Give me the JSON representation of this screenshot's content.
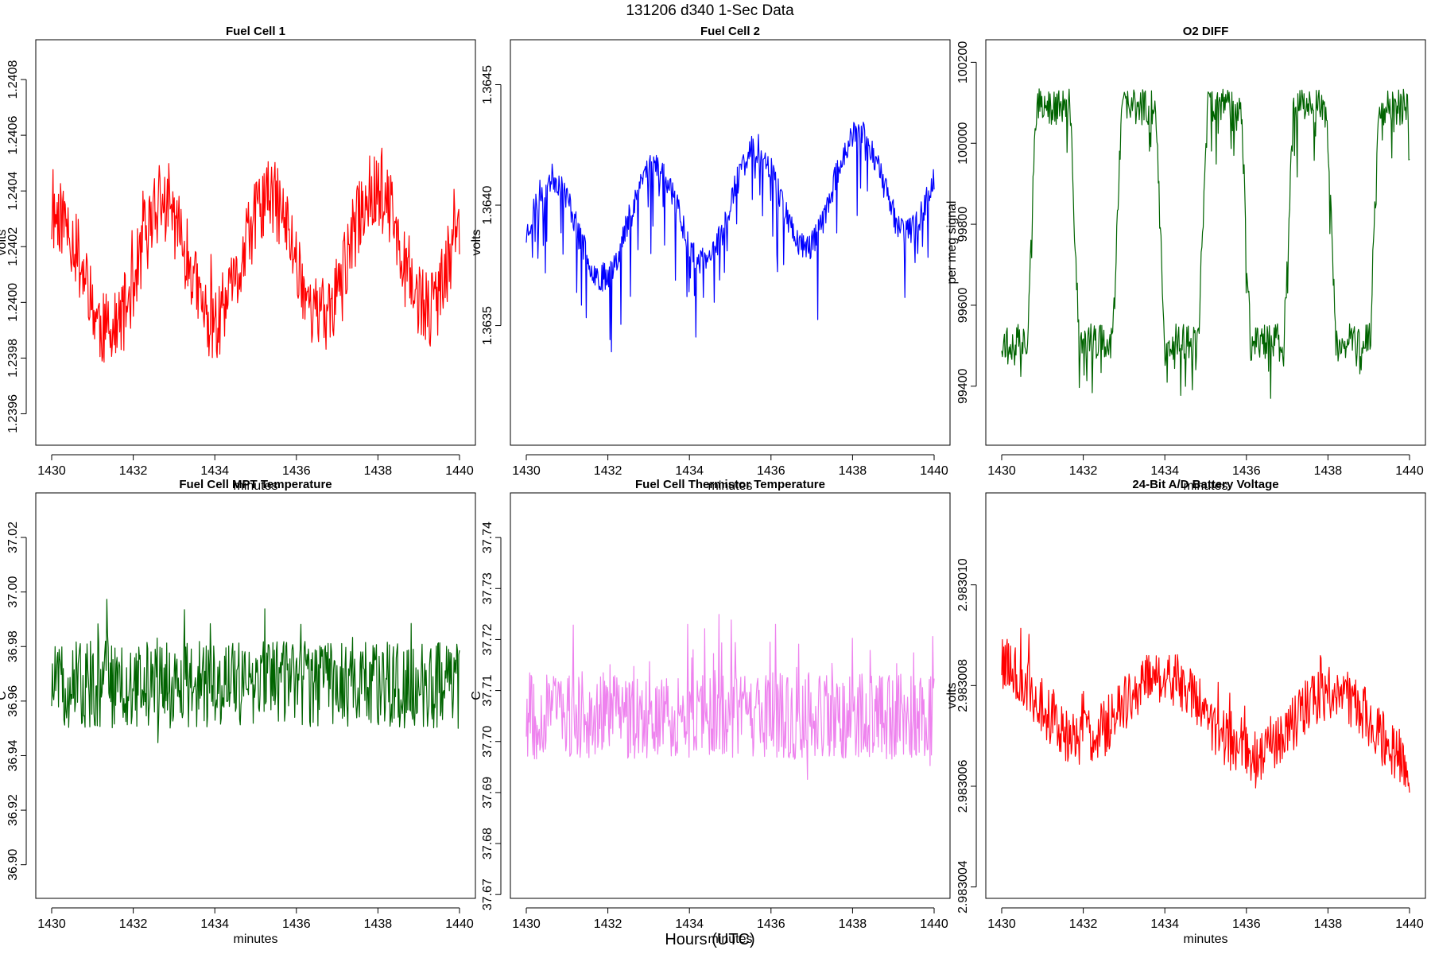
{
  "figure": {
    "title": "131206   d340   1-Sec Data",
    "xlabel": "Hours (UTC)"
  },
  "chart_data": [
    {
      "type": "line",
      "title": "Fuel Cell 1",
      "xlabel": "minutes",
      "ylabel": "volts",
      "color": "#ff0000",
      "xlim": [
        1430,
        1440
      ],
      "ylim": [
        1.23951,
        1.24092
      ],
      "xticks": [
        1430,
        1432,
        1434,
        1436,
        1438,
        1440
      ],
      "yticks": [
        1.2396,
        1.2398,
        1.24,
        1.2402,
        1.2404,
        1.2406,
        1.2408
      ],
      "ytick_decimals": 4,
      "generator": {
        "seed": 11,
        "points": 600,
        "period": 2.6,
        "phase": 0.2,
        "base": 1.24015,
        "amp": 0.00022,
        "trend": 0.00012,
        "noise": 0.00014,
        "spikes": 0.00018,
        "min": 1.23956,
        "max": 1.24087
      }
    },
    {
      "type": "line",
      "title": "Fuel Cell 2",
      "xlabel": "minutes",
      "ylabel": "volts",
      "color": "#0000ff",
      "xlim": [
        1430,
        1440
      ],
      "ylim": [
        1.36303,
        1.36466
      ],
      "xticks": [
        1430,
        1432,
        1434,
        1436,
        1438,
        1440
      ],
      "yticks": [
        1.3635,
        1.364,
        1.3645
      ],
      "ytick_decimals": 4,
      "generator": {
        "seed": 23,
        "points": 600,
        "period": 2.5,
        "phase": 0.0,
        "base": 1.364,
        "amp": 0.00022,
        "trend": 0.00025,
        "noise": 6e-05,
        "spikes": -0.00035,
        "min": 1.3631,
        "max": 1.36461
      }
    },
    {
      "type": "line",
      "title": "O2 DIFF",
      "xlabel": "minutes",
      "ylabel": "per meg signal",
      "color": "#006400",
      "xlim": [
        1430,
        1440
      ],
      "ylim": [
        99270,
        100240
      ],
      "xticks": [
        1430,
        1432,
        1434,
        1436,
        1438,
        1440
      ],
      "yticks": [
        99400,
        99600,
        99800,
        100000,
        100200
      ],
      "ytick_decimals": 0,
      "generator": {
        "seed": 37,
        "points": 600,
        "period": 2.1,
        "phase": 0.65,
        "base": 99800,
        "amp": 290,
        "trend": 0,
        "noise": 45,
        "spikes": -140,
        "min": 99280,
        "max": 100220,
        "square": true
      }
    },
    {
      "type": "line",
      "title": "Fuel Cell MPT Temperature",
      "xlabel": "minutes",
      "ylabel": "C",
      "color": "#006400",
      "xlim": [
        1430,
        1440
      ],
      "ylim": [
        36.89,
        37.034
      ],
      "xticks": [
        1430,
        1432,
        1434,
        1436,
        1438,
        1440
      ],
      "yticks": [
        36.9,
        36.92,
        36.94,
        36.96,
        36.98,
        37.0,
        37.02
      ],
      "ytick_decimals": 2,
      "generator": {
        "seed": 51,
        "points": 600,
        "period": 3.0,
        "phase": 0,
        "base": 36.966,
        "amp": 0.0,
        "trend": 0,
        "noise": 0.016,
        "spikes": 0.03,
        "min": 36.894,
        "max": 37.031
      }
    },
    {
      "type": "line",
      "title": "Fuel Cell Thermistor Temperature",
      "xlabel": "minutes",
      "ylabel": "C",
      "color": "#ee82ee",
      "xlim": [
        1430,
        1440
      ],
      "ylim": [
        37.6705,
        37.7475
      ],
      "xticks": [
        1430,
        1432,
        1434,
        1436,
        1438,
        1440
      ],
      "yticks": [
        37.67,
        37.68,
        37.69,
        37.7,
        37.71,
        37.72,
        37.73,
        37.74
      ],
      "ytick_decimals": 2,
      "generator": {
        "seed": 67,
        "points": 600,
        "period": 3.0,
        "phase": 0,
        "base": 37.705,
        "amp": 0.0,
        "trend": 0,
        "noise": 0.0085,
        "spikes": 0.018,
        "min": 37.672,
        "max": 37.743
      }
    },
    {
      "type": "line",
      "title": "24-Bit A/D Battery Voltage",
      "xlabel": "minutes",
      "ylabel": "volts",
      "color": "#ff0000",
      "xlim": [
        1430,
        1440
      ],
      "ylim": [
        2.9830039,
        2.9830117
      ],
      "xticks": [
        1430,
        1432,
        1434,
        1436,
        1438,
        1440
      ],
      "yticks": [
        2.983004,
        2.983006,
        2.983008,
        2.98301
      ],
      "ytick_decimals": 6,
      "generator": {
        "seed": 79,
        "points": 600,
        "period": 4.2,
        "phase": 0.3,
        "base": 2.9830074,
        "amp": 7e-07,
        "trend": -8e-07,
        "noise": 5.5e-07,
        "spikes": 1.1e-06,
        "min": 2.9830042,
        "max": 2.9830115
      }
    }
  ]
}
